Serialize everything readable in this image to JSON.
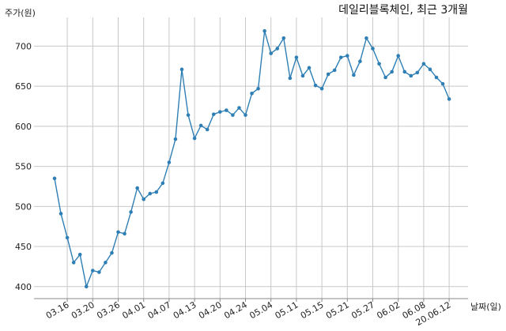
{
  "chart_data": {
    "type": "line",
    "title": "데일리블록체인, 최근 3개월",
    "ylabel": "주가(원)",
    "xlabel": "날짜(일)",
    "ylim": [
      385,
      730
    ],
    "yticks": [
      400,
      450,
      500,
      550,
      600,
      650,
      700
    ],
    "grid": true,
    "line_color": "#2f7fb5",
    "x_tick_labels": [
      {
        "index": 2,
        "label": "03.16"
      },
      {
        "index": 6,
        "label": "03.20"
      },
      {
        "index": 10,
        "label": "03.26"
      },
      {
        "index": 14,
        "label": "04.01"
      },
      {
        "index": 18,
        "label": "04.07"
      },
      {
        "index": 22,
        "label": "04.13"
      },
      {
        "index": 26,
        "label": "04.20"
      },
      {
        "index": 30,
        "label": "04.24"
      },
      {
        "index": 34,
        "label": "05.04"
      },
      {
        "index": 38,
        "label": "05.11"
      },
      {
        "index": 42,
        "label": "05.15"
      },
      {
        "index": 46,
        "label": "05.21"
      },
      {
        "index": 50,
        "label": "05.27"
      },
      {
        "index": 54,
        "label": "06.02"
      },
      {
        "index": 58,
        "label": "06.08"
      },
      {
        "index": 62,
        "label": "20.06.12"
      }
    ],
    "values": [
      535,
      491,
      461,
      430,
      440,
      400,
      420,
      418,
      430,
      442,
      468,
      466,
      493,
      523,
      509,
      516,
      518,
      529,
      555,
      584,
      671,
      614,
      585,
      601,
      596,
      615,
      618,
      620,
      614,
      623,
      614,
      641,
      647,
      719,
      691,
      697,
      710,
      660,
      686,
      663,
      673,
      651,
      647,
      665,
      670,
      686,
      688,
      664,
      681,
      710,
      697,
      678,
      661,
      668,
      688,
      668,
      663,
      667,
      678,
      671,
      661,
      653,
      634
    ]
  }
}
